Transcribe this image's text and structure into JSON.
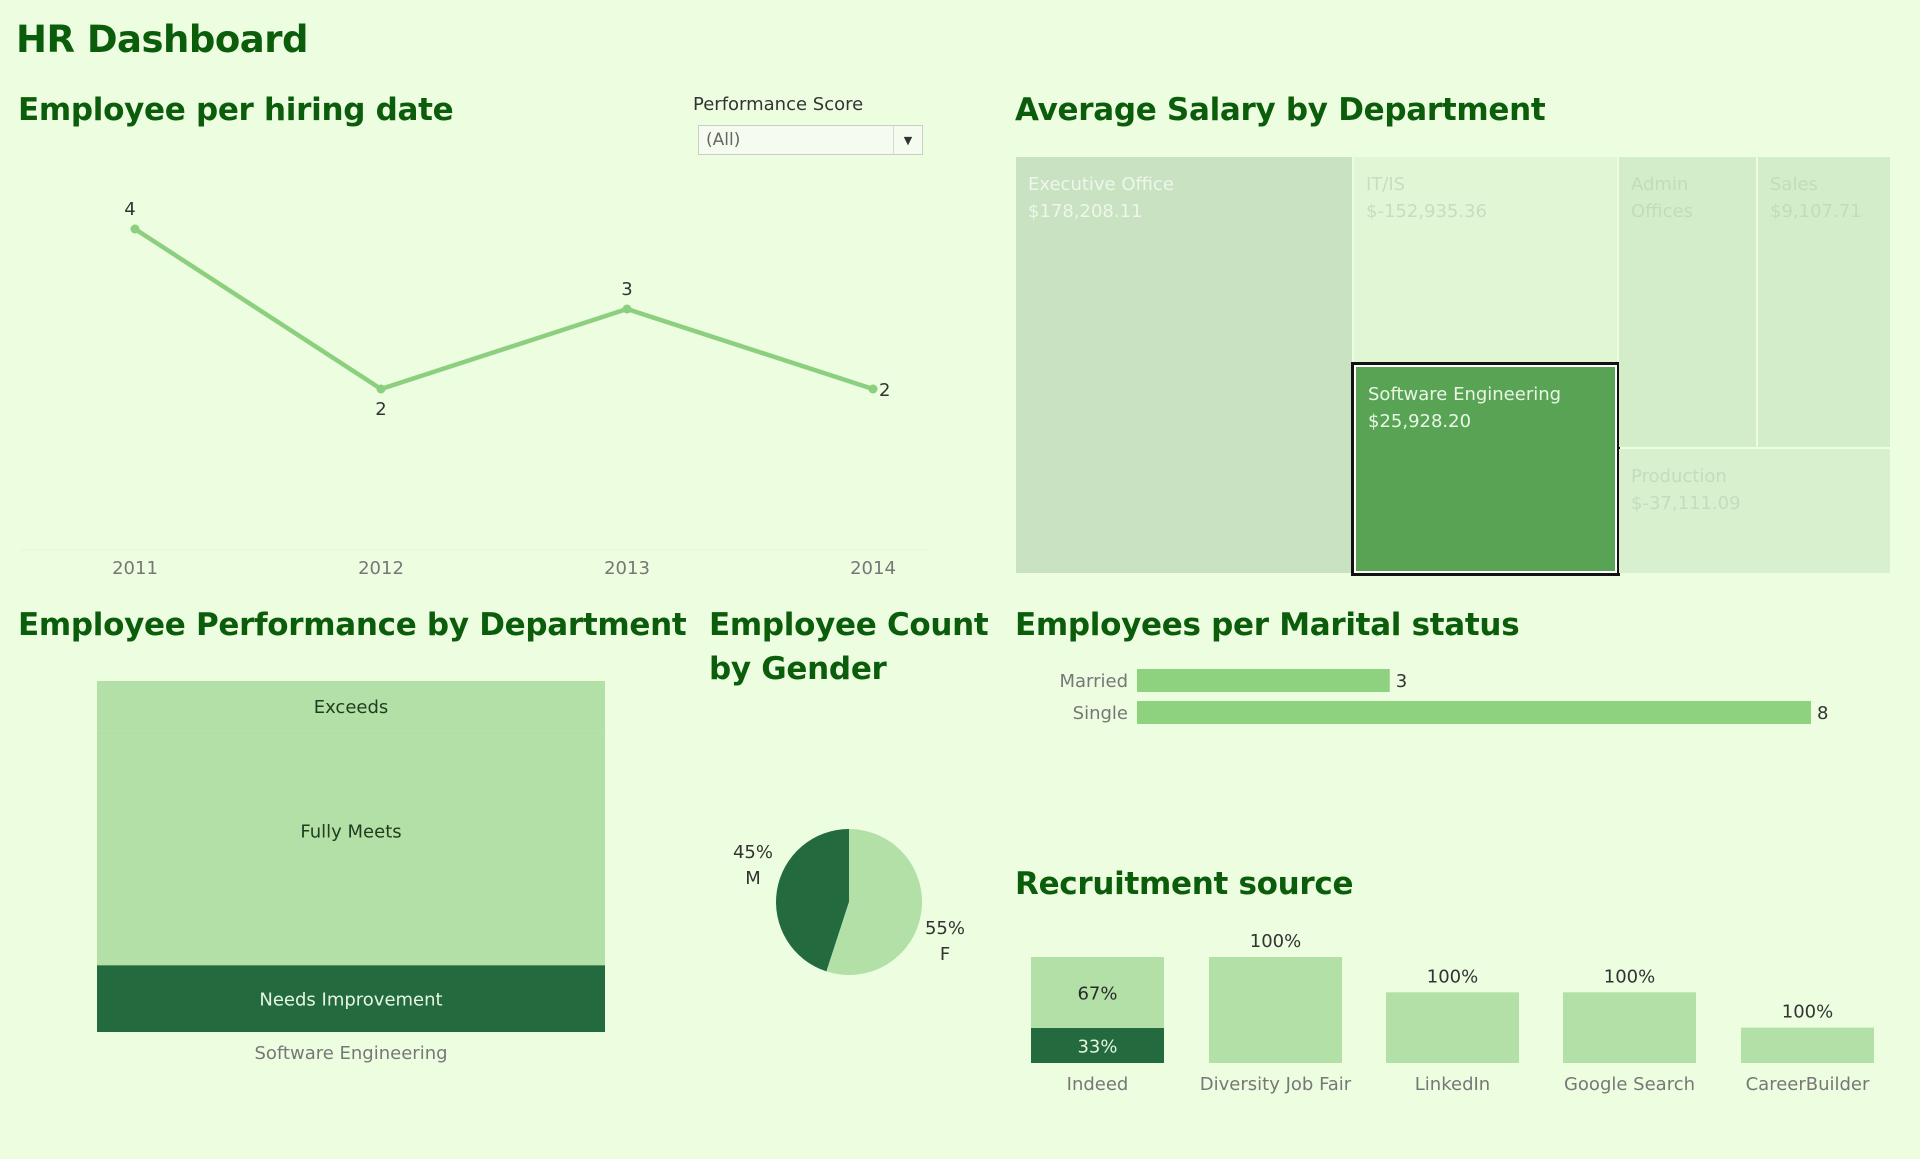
{
  "dashboard": {
    "title": "HR Dashboard"
  },
  "filter": {
    "label": "Performance Score",
    "value": "(All)",
    "arrow_icon": "triangle-down"
  },
  "titles": {
    "hiring": "Employee per hiring date",
    "salary": "Average Salary by Department",
    "performance": "Employee Performance by Department",
    "gender_line1": "Employee Count",
    "gender_line2": "by Gender",
    "marital": "Employees per Marital status",
    "recruitment": "Recruitment source"
  },
  "colors": {
    "background": "#ecfde0",
    "title": "#0b5d0b",
    "line": "#8ccf7e",
    "light_green": "#b2e0a6",
    "dark_green": "#236b3e",
    "selected_treemap": "#58a454"
  },
  "chart_data": [
    {
      "id": "hiring",
      "type": "line",
      "title": "Employee per hiring date",
      "categories": [
        "2011",
        "2012",
        "2013",
        "2014"
      ],
      "values": [
        4,
        2,
        3,
        2
      ],
      "labels": [
        "4",
        "2",
        "3",
        "2"
      ],
      "xlabel": "",
      "ylabel": "",
      "grid": false
    },
    {
      "id": "salary",
      "type": "treemap",
      "title": "Average Salary by Department",
      "items": [
        {
          "name": "Executive Office",
          "value_label": "$178,208.11",
          "value": 178208.11,
          "selected": false
        },
        {
          "name": "IT/IS",
          "value_label": "$-152,935.36",
          "value": -152935.36,
          "selected": false
        },
        {
          "name": "Software Engineering",
          "value_label": "$25,928.20",
          "value": 25928.2,
          "selected": true
        },
        {
          "name": "Admin Offices",
          "value_label": "",
          "value": null,
          "selected": false
        },
        {
          "name": "Sales",
          "value_label": "$9,107.71",
          "value": 9107.71,
          "selected": false
        },
        {
          "name": "Production",
          "value_label": "$-37,111.09",
          "value": -37111.09,
          "selected": false
        }
      ]
    },
    {
      "id": "performance",
      "type": "bar",
      "stacked": true,
      "title": "Employee Performance by Department",
      "categories": [
        "Software Engineering"
      ],
      "series": [
        {
          "name": "Exceeds",
          "share": 0.14
        },
        {
          "name": "Fully Meets",
          "share": 0.67
        },
        {
          "name": "Needs Improvement",
          "share": 0.19
        }
      ]
    },
    {
      "id": "gender",
      "type": "pie",
      "title": "Employee Count by Gender",
      "slices": [
        {
          "name": "M",
          "value": 45,
          "label": "45%"
        },
        {
          "name": "F",
          "value": 55,
          "label": "55%"
        }
      ]
    },
    {
      "id": "marital",
      "type": "bar",
      "orientation": "horizontal",
      "title": "Employees per Marital status",
      "categories": [
        "Married",
        "Single"
      ],
      "values": [
        3,
        8
      ],
      "xlim": [
        0,
        8
      ]
    },
    {
      "id": "recruitment",
      "type": "bar",
      "title": "Recruitment source",
      "categories": [
        "Indeed",
        "Diversity Job Fair",
        "LinkedIn",
        "Google Search",
        "CareerBuilder"
      ],
      "values": [
        3,
        3,
        2,
        2,
        1
      ],
      "segments": [
        [
          {
            "share": 0.67,
            "label": "67%"
          },
          {
            "share": 0.33,
            "label": "33%"
          }
        ],
        [
          {
            "share": 1,
            "label": "100%"
          }
        ],
        [
          {
            "share": 1,
            "label": "100%"
          }
        ],
        [
          {
            "share": 1,
            "label": "100%"
          }
        ],
        [
          {
            "share": 1,
            "label": "100%"
          }
        ]
      ],
      "ylim": [
        0,
        3
      ]
    }
  ]
}
